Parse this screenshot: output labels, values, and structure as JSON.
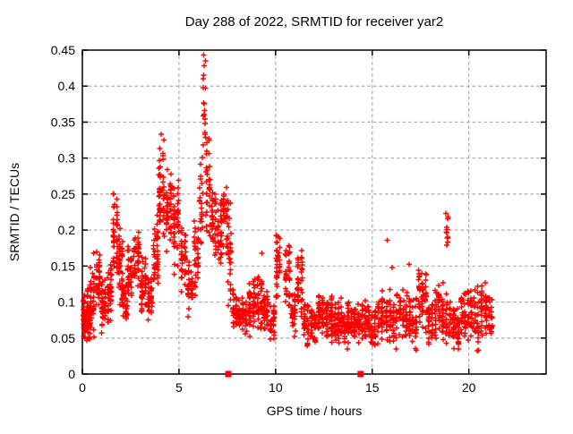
{
  "figure": {
    "background": "#ffffff"
  },
  "chart_data": {
    "type": "scatter",
    "title": "Day 288 of 2022, SRMTID for receiver yar2",
    "xlabel": "GPS time / hours",
    "ylabel": "SRMTID / TECUs",
    "xlim": [
      0,
      24
    ],
    "ylim": [
      0,
      0.45
    ],
    "xticks": [
      {
        "v": 0,
        "label": "0"
      },
      {
        "v": 5,
        "label": "5"
      },
      {
        "v": 10,
        "label": "10"
      },
      {
        "v": 15,
        "label": "15"
      },
      {
        "v": 20,
        "label": "20"
      }
    ],
    "yticks": [
      {
        "v": 0,
        "label": "0"
      },
      {
        "v": 0.05,
        "label": "0.05"
      },
      {
        "v": 0.1,
        "label": "0.1"
      },
      {
        "v": 0.15,
        "label": "0.15"
      },
      {
        "v": 0.2,
        "label": "0.2"
      },
      {
        "v": 0.25,
        "label": "0.25"
      },
      {
        "v": 0.3,
        "label": "0.3"
      },
      {
        "v": 0.35,
        "label": "0.35"
      },
      {
        "v": 0.4,
        "label": "0.4"
      },
      {
        "v": 0.45,
        "label": "0.45"
      }
    ],
    "grid": true,
    "grid_color": "#a9a9a9",
    "border_color": "#000000",
    "marker": "plus",
    "marker_color": "#ff0000",
    "data_x_end_hours": 21.25,
    "y_max_observed": 0.445,
    "clusters_format": [
      "x_start_h",
      "x_end_h",
      "y_min_TECUs",
      "y_max_TECUs",
      "n_points"
    ],
    "clusters": [
      [
        0.0,
        0.35,
        0.035,
        0.13,
        55
      ],
      [
        0.05,
        0.45,
        0.045,
        0.1,
        35
      ],
      [
        0.35,
        0.65,
        0.04,
        0.17,
        38
      ],
      [
        0.65,
        0.95,
        0.09,
        0.175,
        40
      ],
      [
        0.95,
        1.25,
        0.05,
        0.135,
        40
      ],
      [
        1.25,
        1.55,
        0.06,
        0.16,
        35
      ],
      [
        1.55,
        1.85,
        0.13,
        0.255,
        45
      ],
      [
        1.85,
        2.15,
        0.09,
        0.21,
        40
      ],
      [
        2.05,
        2.35,
        0.07,
        0.125,
        30
      ],
      [
        2.3,
        2.6,
        0.1,
        0.185,
        35
      ],
      [
        2.6,
        3.0,
        0.12,
        0.205,
        45
      ],
      [
        3.0,
        3.35,
        0.08,
        0.165,
        40
      ],
      [
        3.35,
        3.65,
        0.07,
        0.145,
        35
      ],
      [
        3.65,
        3.95,
        0.1,
        0.23,
        40
      ],
      [
        3.9,
        4.3,
        0.17,
        0.335,
        48
      ],
      [
        4.3,
        4.65,
        0.16,
        0.3,
        40
      ],
      [
        4.65,
        5.05,
        0.13,
        0.275,
        45
      ],
      [
        5.05,
        5.4,
        0.1,
        0.21,
        40
      ],
      [
        5.4,
        5.75,
        0.07,
        0.17,
        35
      ],
      [
        5.75,
        6.05,
        0.1,
        0.23,
        30
      ],
      [
        6.05,
        6.25,
        0.15,
        0.31,
        22
      ],
      [
        6.24,
        6.4,
        0.28,
        0.445,
        15
      ],
      [
        6.35,
        6.65,
        0.18,
        0.335,
        32
      ],
      [
        6.65,
        6.95,
        0.15,
        0.27,
        35
      ],
      [
        6.95,
        7.25,
        0.13,
        0.255,
        35
      ],
      [
        7.25,
        7.55,
        0.16,
        0.3,
        32
      ],
      [
        7.5,
        7.72,
        0.08,
        0.25,
        28
      ],
      [
        7.72,
        8.05,
        0.055,
        0.12,
        32
      ],
      [
        8.05,
        8.55,
        0.05,
        0.11,
        48
      ],
      [
        8.55,
        9.0,
        0.05,
        0.135,
        48
      ],
      [
        9.0,
        9.35,
        0.055,
        0.155,
        35
      ],
      [
        9.35,
        9.65,
        0.05,
        0.12,
        32
      ],
      [
        9.65,
        10.0,
        0.04,
        0.1,
        35
      ],
      [
        10.0,
        10.25,
        0.09,
        0.21,
        34
      ],
      [
        10.45,
        10.8,
        0.08,
        0.185,
        36
      ],
      [
        10.8,
        11.05,
        0.05,
        0.12,
        28
      ],
      [
        11.05,
        11.45,
        0.07,
        0.19,
        38
      ],
      [
        11.4,
        11.75,
        0.03,
        0.11,
        32
      ],
      [
        11.75,
        12.15,
        0.04,
        0.105,
        42
      ],
      [
        12.15,
        12.55,
        0.05,
        0.12,
        42
      ],
      [
        12.55,
        13.0,
        0.04,
        0.115,
        50
      ],
      [
        13.0,
        13.5,
        0.04,
        0.11,
        52
      ],
      [
        13.5,
        14.0,
        0.03,
        0.1,
        52
      ],
      [
        14.0,
        14.4,
        0.04,
        0.1,
        42
      ],
      [
        14.4,
        14.9,
        0.045,
        0.115,
        48
      ],
      [
        14.9,
        15.4,
        0.03,
        0.11,
        48
      ],
      [
        15.4,
        15.85,
        0.04,
        0.12,
        44
      ],
      [
        15.85,
        16.35,
        0.03,
        0.12,
        46
      ],
      [
        16.35,
        16.85,
        0.04,
        0.13,
        46
      ],
      [
        16.85,
        17.35,
        0.03,
        0.12,
        46
      ],
      [
        17.35,
        17.85,
        0.05,
        0.155,
        46
      ],
      [
        17.85,
        18.35,
        0.03,
        0.12,
        46
      ],
      [
        18.35,
        18.75,
        0.04,
        0.135,
        40
      ],
      [
        18.82,
        18.95,
        0.17,
        0.23,
        13
      ],
      [
        18.75,
        19.1,
        0.035,
        0.12,
        30
      ],
      [
        19.1,
        19.55,
        0.025,
        0.11,
        46
      ],
      [
        19.55,
        20.05,
        0.04,
        0.12,
        46
      ],
      [
        20.05,
        20.55,
        0.03,
        0.125,
        46
      ],
      [
        20.55,
        21.0,
        0.04,
        0.13,
        44
      ],
      [
        21.0,
        21.25,
        0.05,
        0.11,
        24
      ]
    ],
    "extra_points": [
      [
        6.28,
        0.443
      ],
      [
        6.31,
        0.428
      ],
      [
        6.27,
        0.415
      ],
      [
        4.08,
        0.333
      ],
      [
        9.28,
        0.168
      ],
      [
        15.78,
        0.186
      ],
      [
        16.02,
        0.148
      ],
      [
        16.9,
        0.152
      ]
    ],
    "zero_markers": {
      "marker": "filled-square",
      "y": 0,
      "x": [
        7.55,
        14.4
      ]
    },
    "seed": 42
  }
}
